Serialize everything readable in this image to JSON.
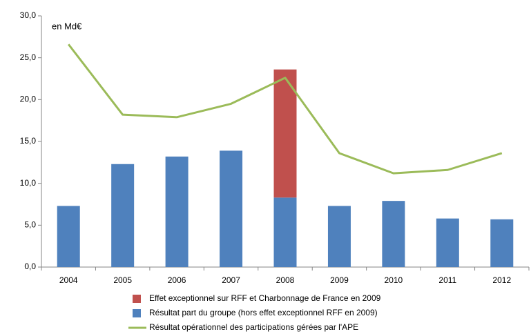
{
  "chart_data": {
    "type": "bar",
    "annotation": "en Md€",
    "categories": [
      "2004",
      "2005",
      "2006",
      "2007",
      "2008",
      "2009",
      "2010",
      "2011",
      "2012"
    ],
    "series": [
      {
        "name": "Effet exceptionnel sur RFF et Charbonnage de France en 2009",
        "color": "#c0504d",
        "stack": true,
        "values": [
          null,
          null,
          null,
          null,
          15.3,
          null,
          null,
          null,
          null
        ]
      },
      {
        "name": "Résultat part du groupe (hors effet exceptionnel RFF en 2009)",
        "color": "#4f81bd",
        "values": [
          7.3,
          12.3,
          13.2,
          13.9,
          8.3,
          7.3,
          7.9,
          5.8,
          5.7
        ]
      },
      {
        "name": "Résultat opérationnel des participations gérées par l'APE",
        "color": "#9bbb59",
        "type": "line",
        "values": [
          26.6,
          18.2,
          17.9,
          19.5,
          22.6,
          13.6,
          11.2,
          11.6,
          13.6
        ]
      }
    ],
    "ylim": [
      0,
      30
    ],
    "yticks": [
      {
        "value": 0,
        "label": "0,0"
      },
      {
        "value": 5,
        "label": "5,0"
      },
      {
        "value": 10,
        "label": "10,0"
      },
      {
        "value": 15,
        "label": "15,0"
      },
      {
        "value": 20,
        "label": "20,0"
      },
      {
        "value": 25,
        "label": "25,0"
      },
      {
        "value": 30,
        "label": "30,0"
      }
    ],
    "legend": "bottom"
  }
}
